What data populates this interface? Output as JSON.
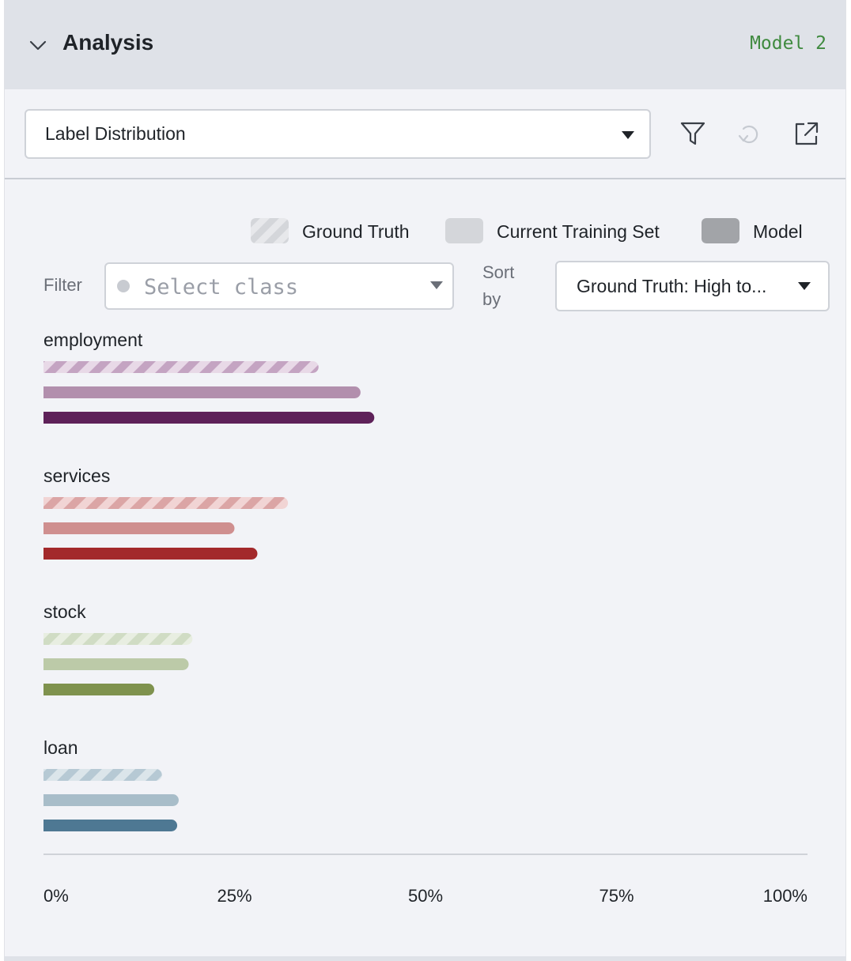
{
  "header": {
    "title": "Analysis",
    "model_tag": "Model 2"
  },
  "toolbar": {
    "view_select_value": "Label Distribution",
    "icons": [
      "filter-icon",
      "undo-icon",
      "external-link-icon"
    ]
  },
  "legend": [
    {
      "label": "Ground Truth",
      "style": "hatched"
    },
    {
      "label": "Current Training Set",
      "style": "light"
    },
    {
      "label": "Model",
      "style": "solid"
    }
  ],
  "filter": {
    "label": "Filter",
    "placeholder": "Select class"
  },
  "sort": {
    "label": "Sort by",
    "value": "Ground Truth: High to..."
  },
  "chart_data": {
    "type": "bar",
    "orientation": "horizontal",
    "categories": [
      "employment",
      "services",
      "stock",
      "loan"
    ],
    "series": [
      {
        "name": "Ground Truth",
        "values": [
          36,
          32,
          19.5,
          15.5
        ]
      },
      {
        "name": "Current Training Set",
        "values": [
          41.5,
          25,
          19,
          17.7
        ]
      },
      {
        "name": "Model",
        "values": [
          43.3,
          28,
          14.5,
          17.5
        ]
      }
    ],
    "colors": {
      "employment": {
        "hatch_a": "#c4a4c2",
        "hatch_b": "#e8d9e7",
        "light": "#b28fad",
        "solid": "#5e2159"
      },
      "services": {
        "hatch_a": "#dba5a5",
        "hatch_b": "#f1d4d4",
        "light": "#cf8f8f",
        "solid": "#a3292b"
      },
      "stock": {
        "hatch_a": "#d0dcc4",
        "hatch_b": "#e8eee1",
        "light": "#bccaa8",
        "solid": "#7f924e"
      },
      "loan": {
        "hatch_a": "#b6c9d4",
        "hatch_b": "#dbe5ea",
        "light": "#a8bdc9",
        "solid": "#4e7893"
      }
    },
    "xlim": [
      0,
      100
    ],
    "x_ticks": [
      "0%",
      "25%",
      "50%",
      "75%",
      "100%"
    ],
    "grid": false
  }
}
